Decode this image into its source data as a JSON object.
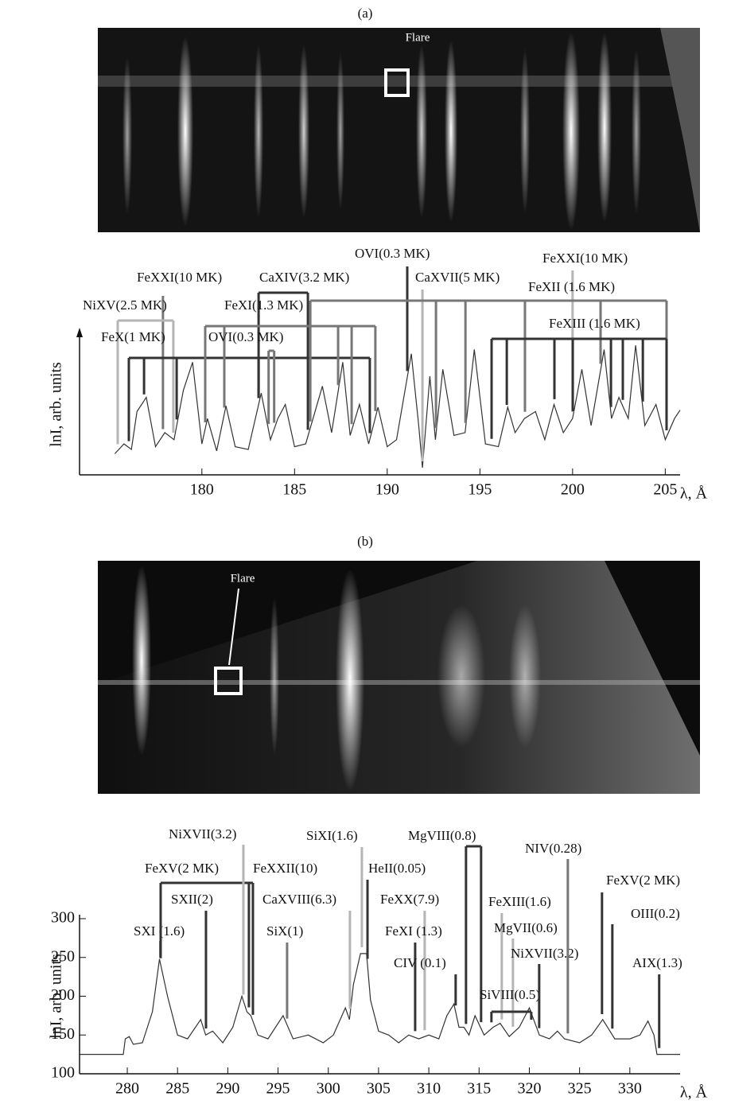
{
  "chart_data": [
    {
      "type": "line",
      "title": "(a)",
      "image_label": "Flare",
      "ylabel": "lnI, arb. units",
      "xlabel": "λ, Å",
      "color": "#333",
      "xlim": [
        173.4,
        205.8
      ],
      "ylim": [
        0,
        100
      ],
      "xticks": [
        180,
        185,
        190,
        195,
        200,
        205
      ],
      "x": [
        175.3,
        175.8,
        176.2,
        176.5,
        177,
        177.5,
        178,
        178.5,
        179,
        179.5,
        180,
        180.3,
        180.8,
        181.3,
        181.8,
        182.5,
        183.2,
        183.7,
        184.1,
        184.5,
        185,
        185.6,
        186.5,
        187,
        187.6,
        188,
        188.5,
        189,
        189.5,
        190,
        190.5,
        191.3,
        191.7,
        191.9,
        192.3,
        192.6,
        193,
        193.6,
        194.2,
        194.7,
        195.3,
        196,
        196.5,
        196.9,
        197.4,
        198,
        198.5,
        199,
        199.5,
        200,
        200.5,
        201,
        201.7,
        202.1,
        202.5,
        203,
        203.4,
        203.9,
        204.5,
        205,
        205.5,
        205.8
      ],
      "values": [
        15,
        22,
        18,
        45,
        55,
        20,
        30,
        25,
        60,
        80,
        22,
        40,
        17,
        49,
        20,
        18,
        58,
        25,
        40,
        50,
        20,
        22,
        63,
        30,
        80,
        28,
        50,
        22,
        48,
        20,
        25,
        86,
        35,
        5,
        70,
        25,
        75,
        28,
        30,
        89,
        22,
        20,
        48,
        30,
        40,
        45,
        25,
        50,
        30,
        40,
        75,
        35,
        89,
        40,
        55,
        40,
        92,
        35,
        50,
        25,
        40,
        46
      ],
      "annotations": [
        {
          "text": "FeXXI(10 MK)",
          "x": [
            177.9
          ]
        },
        {
          "text": "NiXV(2.5 MK)",
          "x": [
            175.46,
            178.46
          ]
        },
        {
          "text": "FeX(1 MK)",
          "x": [
            176.06,
            176.88,
            178.64,
            183.06,
            189.06
          ]
        },
        {
          "text": "CaXIV(3.2 MK)",
          "x": [
            183.06,
            185.72
          ]
        },
        {
          "text": "FeXI(1.3 MK)",
          "x": [
            180.18,
            181.21,
            187.35,
            188.08,
            189.36
          ]
        },
        {
          "text": "OVI(0.3 MK)",
          "x": [
            183.6,
            183.9
          ]
        },
        {
          "text": "OVI(0.3 MK)",
          "x": [
            191.08
          ]
        },
        {
          "text": "CaXVII(5 MK)",
          "x": [
            191.9
          ]
        },
        {
          "text": "FeXXI(10 MK)",
          "x": [
            200.0
          ]
        },
        {
          "text": "FeXII (1.6 MK)",
          "x": [
            185.85,
            192.63,
            194.22,
            197.43,
            201.51,
            205.07
          ]
        },
        {
          "text": "FeXIII (1.6 MK)",
          "x": [
            195.63,
            196.45,
            199.02,
            200.01,
            202.07,
            202.71,
            203.79,
            205.07
          ]
        }
      ]
    },
    {
      "type": "line",
      "title": "(b)",
      "image_label": "Flare",
      "ylabel": "lnI, arb. units",
      "xlabel": "λ, Å",
      "color": "#333",
      "xlim": [
        275.25,
        335
      ],
      "ylim": [
        100,
        300
      ],
      "xticks": [
        280,
        285,
        290,
        295,
        300,
        305,
        310,
        315,
        320,
        325,
        330
      ],
      "yticks": [
        100,
        150,
        200,
        250,
        300
      ],
      "x": [
        275.3,
        279.6,
        279.8,
        280.2,
        280.6,
        281.5,
        282.5,
        283.2,
        284,
        285,
        286,
        287.3,
        287.8,
        288.5,
        289.5,
        290.5,
        291.4,
        291.9,
        292.3,
        293,
        294,
        295.5,
        296.5,
        298,
        299.5,
        300.5,
        301.7,
        302.1,
        302.5,
        303.2,
        303.8,
        304.2,
        305,
        306,
        307,
        308,
        309,
        310,
        311,
        311.8,
        312.5,
        313,
        313.5,
        314,
        314.6,
        315.5,
        316.4,
        317.1,
        318,
        319,
        320,
        321,
        322,
        322.8,
        323.5,
        325,
        326.2,
        327.3,
        328.5,
        330,
        331,
        331.8,
        332.4,
        332.7,
        335
      ],
      "values": [
        125,
        125,
        145,
        148,
        138,
        140,
        180,
        248,
        200,
        150,
        145,
        170,
        150,
        155,
        140,
        160,
        200,
        180,
        175,
        150,
        145,
        175,
        145,
        150,
        140,
        150,
        185,
        170,
        215,
        255,
        255,
        195,
        155,
        150,
        140,
        150,
        145,
        150,
        145,
        175,
        190,
        160,
        160,
        150,
        175,
        150,
        160,
        165,
        148,
        160,
        185,
        150,
        145,
        155,
        145,
        140,
        150,
        170,
        145,
        145,
        150,
        168,
        150,
        125,
        125
      ],
      "annotations": [
        {
          "text": "SXI (1.6)",
          "x": [
            283.3
          ]
        },
        {
          "text": "SXII(2)",
          "x": [
            287.83
          ]
        },
        {
          "text": "FeXV(2 MK)",
          "x": [
            283.32,
            292.5
          ]
        },
        {
          "text": "NiXVII(3.2)",
          "x": [
            291.55
          ]
        },
        {
          "text": "FeXXII(10)",
          "x": [
            292.1
          ]
        },
        {
          "text": "SiX(1)",
          "x": [
            295.9
          ]
        },
        {
          "text": "CaXVIII(6.3)",
          "x": [
            302.15
          ]
        },
        {
          "text": "SiXI(1.6)",
          "x": [
            303.34
          ]
        },
        {
          "text": "HeII(0.05)",
          "x": [
            303.9
          ]
        },
        {
          "text": "FeXX(7.9)",
          "x": [
            309.59
          ]
        },
        {
          "text": "FeXI (1.3)",
          "x": [
            308.64
          ]
        },
        {
          "text": "CIV (0.1)",
          "x": [
            312.67
          ]
        },
        {
          "text": "MgVIII(0.8)",
          "x": [
            313.7,
            315.2
          ]
        },
        {
          "text": "FeXIII(1.6)",
          "x": [
            317.26
          ]
        },
        {
          "text": "MgVII(0.6)",
          "x": [
            318.37
          ]
        },
        {
          "text": "SiVIII(0.5)",
          "x": [
            316.23,
            320.19
          ]
        },
        {
          "text": "NiXVII(3.2)",
          "x": [
            320.98
          ]
        },
        {
          "text": "NIV(0.28)",
          "x": [
            323.83
          ]
        },
        {
          "text": "FeXV(2 MK)",
          "x": [
            327.23
          ]
        },
        {
          "text": "OIII(0.2)",
          "x": [
            328.26
          ]
        },
        {
          "text": "AIX(1.3)",
          "x": [
            332.92
          ]
        }
      ]
    }
  ]
}
